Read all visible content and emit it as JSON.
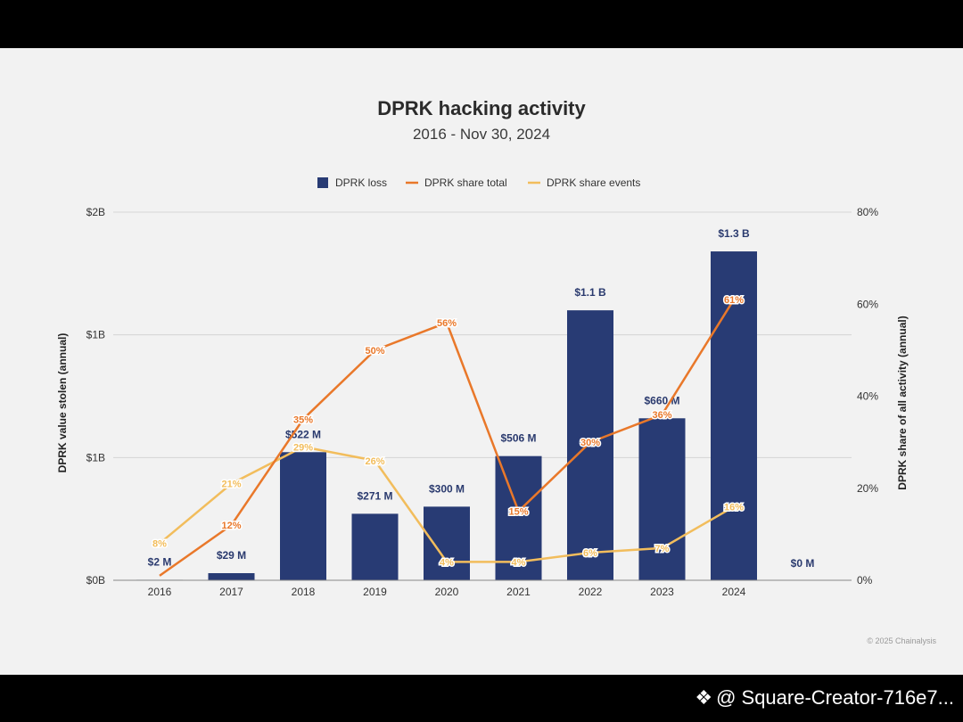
{
  "watermark": {
    "icon": "binance-diamond-icon",
    "text": "@ Square-Creator-716e7..."
  },
  "copyright": "© 2025 Chainalysis",
  "colors": {
    "bar": "#283b74",
    "share_total": "#e9782a",
    "share_events": "#f2bd5c",
    "grid": "#d5d5d5"
  },
  "chart_data": {
    "type": "bar",
    "title": "DPRK hacking activity",
    "subtitle": "2016 - Nov 30, 2024",
    "categories": [
      "2016",
      "2017",
      "2018",
      "2019",
      "2020",
      "2021",
      "2022",
      "2023",
      "2024"
    ],
    "legend": [
      "DPRK loss",
      "DPRK share total",
      "DPRK share events"
    ],
    "ylabel_left": "DPRK value stolen (annual)",
    "ylabel_right": "DPRK share of all activity (annual)",
    "left_ticks": [
      "$0B",
      "$1B",
      "$1B",
      "$2B"
    ],
    "right_ticks": [
      "0%",
      "20%",
      "40%",
      "60%",
      "80%"
    ],
    "ylim_left": [
      0,
      1.5
    ],
    "ylim_right": [
      0,
      80
    ],
    "series": [
      {
        "name": "DPRK loss",
        "kind": "bar",
        "values": [
          0.002,
          0.029,
          0.522,
          0.271,
          0.3,
          0.506,
          1.1,
          0.66,
          1.34
        ],
        "labels": [
          "$2  M",
          "$29  M",
          "$522  M",
          "$271  M",
          "$300  M",
          "$506  M",
          "$1.1 B",
          "$660  M",
          "$1.3 B"
        ]
      },
      {
        "name": "DPRK share total",
        "kind": "line",
        "axis": "right",
        "values": [
          1,
          12,
          35,
          50,
          56,
          15,
          30,
          36,
          61
        ],
        "labels": [
          "",
          "12%",
          "35%",
          "50%",
          "56%",
          "15%",
          "30%",
          "36%",
          "61%"
        ]
      },
      {
        "name": "DPRK share events",
        "kind": "line",
        "axis": "right",
        "values": [
          8,
          21,
          29,
          26,
          4,
          4,
          6,
          7,
          16
        ],
        "labels": [
          "8%",
          "21%",
          "29%",
          "26%",
          "4%",
          "4%",
          "6%",
          "7%",
          "16%"
        ]
      }
    ],
    "extra_label": "$0  M"
  }
}
